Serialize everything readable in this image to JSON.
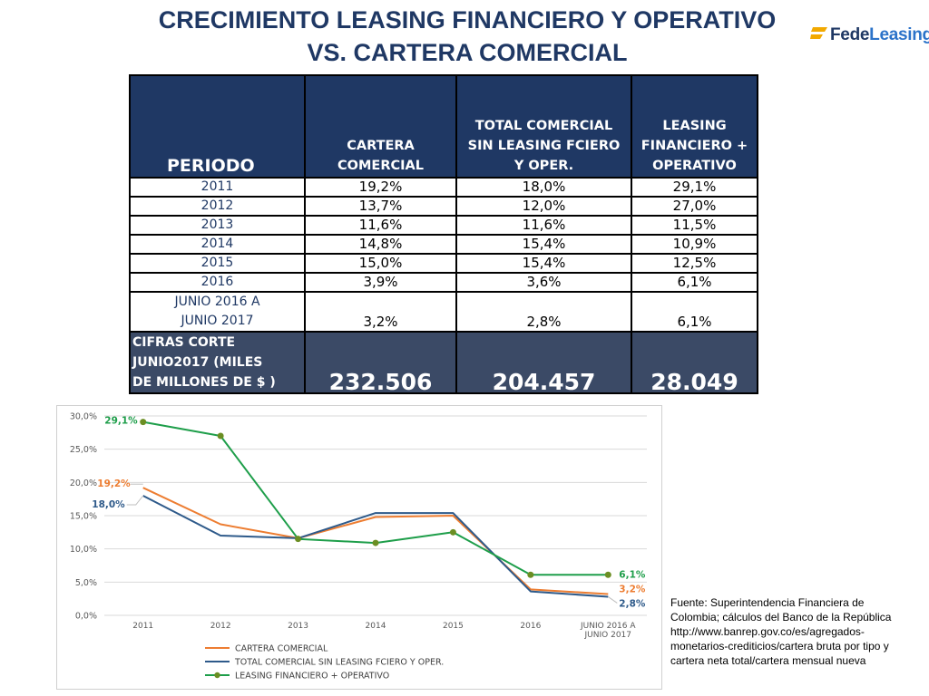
{
  "title": {
    "line1": "CRECIMIENTO LEASING FINANCIERO Y OPERATIVO",
    "line2": "VS. CARTERA COMERCIAL"
  },
  "logo": {
    "part1": "Fede",
    "part2": "Leasing"
  },
  "table": {
    "headers": [
      "PERIODO",
      "CARTERA COMERCIAL",
      "TOTAL COMERCIAL SIN LEASING FCIERO Y OPER.",
      "LEASING FINANCIERO + OPERATIVO"
    ],
    "rows": [
      [
        "2011",
        "19,2%",
        "18,0%",
        "29,1%"
      ],
      [
        "2012",
        "13,7%",
        "12,0%",
        "27,0%"
      ],
      [
        "2013",
        "11,6%",
        "11,6%",
        "11,5%"
      ],
      [
        "2014",
        "14,8%",
        "15,4%",
        "10,9%"
      ],
      [
        "2015",
        "15,0%",
        "15,4%",
        "12,5%"
      ],
      [
        "2016",
        "3,9%",
        "3,6%",
        "6,1%"
      ]
    ],
    "junio_row": {
      "period_line1": "JUNIO 2016 A",
      "period_line2": "JUNIO 2017",
      "values": [
        "3,2%",
        "2,8%",
        "6,1%"
      ]
    },
    "cifras_row": {
      "label_line1": "CIFRAS CORTE",
      "label_line2": "JUNIO2017  (MILES",
      "label_line3": "DE MILLONES DE $ )",
      "values": [
        "232.506",
        "204.457",
        "28.049"
      ]
    }
  },
  "chart_data": {
    "type": "line",
    "categories": [
      "2011",
      "2012",
      "2013",
      "2014",
      "2015",
      "2016",
      "JUNIO 2016 A JUNIO 2017"
    ],
    "category_label_lines": [
      [
        "2011"
      ],
      [
        "2012"
      ],
      [
        "2013"
      ],
      [
        "2014"
      ],
      [
        "2015"
      ],
      [
        "2016"
      ],
      [
        "JUNIO 2016 A",
        "JUNIO 2017"
      ]
    ],
    "ylim": [
      0,
      30
    ],
    "y_ticks": [
      0,
      5,
      10,
      15,
      20,
      25,
      30
    ],
    "y_tick_labels": [
      "0,0%",
      "5,0%",
      "10,0%",
      "15,0%",
      "20,0%",
      "25,0%",
      "30,0%"
    ],
    "grid": true,
    "legend_position": "bottom",
    "series": [
      {
        "name": "CARTERA COMERCIAL",
        "color": "#ed7d31",
        "values": [
          19.2,
          13.7,
          11.6,
          14.8,
          15.0,
          3.9,
          3.2
        ],
        "markers": false,
        "data_labels": {
          "0": "19,2%",
          "6": "3,2%"
        }
      },
      {
        "name": "TOTAL COMERCIAL SIN LEASING FCIERO Y OPER.",
        "color": "#2e5a8a",
        "values": [
          18.0,
          12.0,
          11.6,
          15.4,
          15.4,
          3.6,
          2.8
        ],
        "markers": false,
        "data_labels": {
          "0": "18,0%",
          "6": "2,8%"
        }
      },
      {
        "name": "LEASING FINANCIERO + OPERATIVO",
        "color": "#1e9e4a",
        "values": [
          29.1,
          27.0,
          11.5,
          10.9,
          12.5,
          6.1,
          6.1
        ],
        "markers": true,
        "marker_color": "#6b8e23",
        "data_labels": {
          "0": "29,1%",
          "6": "6,1%"
        }
      }
    ]
  },
  "source": {
    "line1": "Fuente: Superintendencia Financiera de",
    "line2": "Colombia; cálculos del Banco de la República",
    "line3": "http://www.banrep.gov.co/es/agregados-",
    "line4": "monetarios-crediticios/cartera bruta por tipo y",
    "line5": "cartera neta total/cartera mensual nueva"
  }
}
